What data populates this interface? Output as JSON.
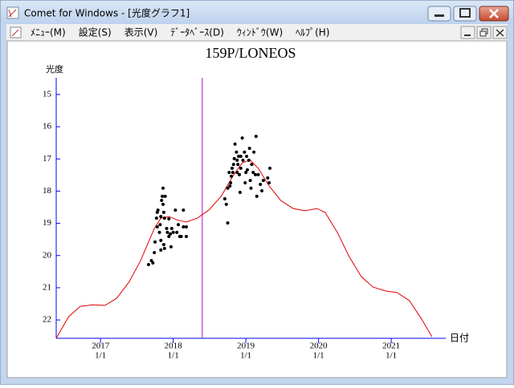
{
  "window": {
    "title": "Comet for Windows - [光度グラフ1]",
    "menu": [
      "ﾒﾆｭｰ(M)",
      "設定(S)",
      "表示(V)",
      "ﾃﾞｰﾀﾍﾞｰｽ(D)",
      "ｳｨﾝﾄﾞｳ(W)",
      "ﾍﾙﾌﾟ(H)"
    ]
  },
  "chart_data": {
    "type": "scatter",
    "title": "159P/LONEOS",
    "y_label": "光度",
    "x_label": "日付",
    "xlim": [
      2016.39,
      2021.75
    ],
    "ylim": [
      22.57,
      14.48
    ],
    "xticks": [
      {
        "value": 2017,
        "label": "2017",
        "sublabel": "1/1"
      },
      {
        "value": 2018,
        "label": "2018",
        "sublabel": "1/1"
      },
      {
        "value": 2019,
        "label": "2019",
        "sublabel": "1/1"
      },
      {
        "value": 2020,
        "label": "2020",
        "sublabel": "1/1"
      },
      {
        "value": 2021,
        "label": "2021",
        "sublabel": "1/1"
      }
    ],
    "yticks": [
      15,
      16,
      17,
      18,
      19,
      20,
      21,
      22
    ],
    "axis_color": "#0000ff",
    "markers": [
      {
        "x": 2018.4,
        "color": "#c000c0"
      }
    ],
    "series": [
      {
        "type": "line",
        "color": "#e00000",
        "x": [
          2016.39,
          2016.56,
          2016.72,
          2016.89,
          2017.06,
          2017.22,
          2017.39,
          2017.55,
          2017.66,
          2017.74,
          2017.83,
          2017.94,
          2018.05,
          2018.18,
          2018.33,
          2018.49,
          2018.66,
          2018.82,
          2018.95,
          2019.06,
          2019.17,
          2019.32,
          2019.48,
          2019.65,
          2019.81,
          2019.98,
          2020.09,
          2020.26,
          2020.42,
          2020.59,
          2020.75,
          2020.92,
          2021.08,
          2021.25,
          2021.42,
          2021.56
        ],
        "values": [
          22.57,
          21.9,
          21.58,
          21.53,
          21.55,
          21.33,
          20.83,
          20.16,
          19.58,
          19.16,
          18.84,
          18.79,
          18.89,
          18.96,
          18.84,
          18.59,
          18.16,
          17.54,
          17.12,
          17.04,
          17.29,
          17.84,
          18.29,
          18.54,
          18.61,
          18.54,
          18.66,
          19.29,
          20.03,
          20.66,
          20.98,
          21.1,
          21.15,
          21.4,
          21.98,
          22.52
        ]
      },
      {
        "type": "scatter",
        "color": "#000000",
        "x": [
          2017.66,
          2017.7,
          2017.72,
          2017.74,
          2017.75,
          2017.77,
          2017.78,
          2017.79,
          2017.81,
          2017.82,
          2017.83,
          2017.83,
          2017.84,
          2017.85,
          2017.86,
          2017.86,
          2017.87,
          2017.88,
          2017.89,
          2017.91,
          2017.92,
          2017.88,
          2017.87,
          2017.94,
          2017.96,
          2017.97,
          2017.98,
          2018.0,
          2018.03,
          2018.05,
          2018.07,
          2018.09,
          2018.11,
          2018.14,
          2018.14,
          2018.18,
          2018.18,
          2017.78,
          2017.83,
          2017.94,
          2018.71,
          2018.73,
          2018.75,
          2018.75,
          2018.77,
          2018.78,
          2018.79,
          2018.8,
          2018.81,
          2018.82,
          2018.83,
          2018.84,
          2018.85,
          2018.87,
          2018.88,
          2018.89,
          2018.9,
          2018.91,
          2018.92,
          2018.93,
          2018.95,
          2018.96,
          2018.98,
          2018.99,
          2019.0,
          2019.01,
          2019.02,
          2019.04,
          2019.05,
          2019.06,
          2019.07,
          2019.08,
          2019.1,
          2019.11,
          2019.13,
          2019.14,
          2019.15,
          2019.17,
          2019.2,
          2019.22,
          2019.24,
          2019.3,
          2019.32,
          2019.33,
          2018.93,
          2018.88
        ],
        "values": [
          20.28,
          20.16,
          20.23,
          19.91,
          19.58,
          18.84,
          18.66,
          18.59,
          19.28,
          19.04,
          19.53,
          18.79,
          18.29,
          18.16,
          17.91,
          18.41,
          18.66,
          18.84,
          18.16,
          19.16,
          19.28,
          19.78,
          19.66,
          19.41,
          19.33,
          19.73,
          19.16,
          19.28,
          18.59,
          19.28,
          19.04,
          19.41,
          19.41,
          19.11,
          18.59,
          19.11,
          19.41,
          19.11,
          19.83,
          18.86,
          18.24,
          18.41,
          18.99,
          17.91,
          17.42,
          17.84,
          17.74,
          17.54,
          17.29,
          17.42,
          17.17,
          16.99,
          16.54,
          16.79,
          17.42,
          17.17,
          16.92,
          17.49,
          18.04,
          17.29,
          16.35,
          17.04,
          16.79,
          17.74,
          17.42,
          16.92,
          17.34,
          17.04,
          16.67,
          17.67,
          17.91,
          17.17,
          17.42,
          16.79,
          17.49,
          16.3,
          18.16,
          17.49,
          17.79,
          17.99,
          17.67,
          17.59,
          17.74,
          17.29,
          16.92,
          17.04
        ]
      }
    ]
  }
}
